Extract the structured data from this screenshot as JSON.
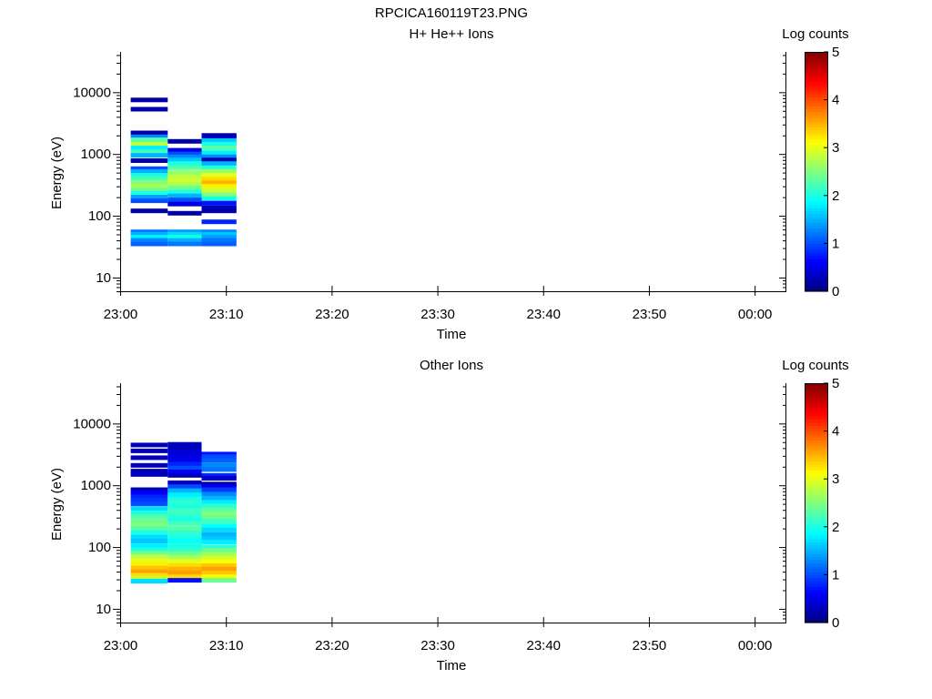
{
  "page_title": "RPCICA160119T23.PNG",
  "colorbar": {
    "stops": [
      "#00007f",
      "#0000ff",
      "#007fff",
      "#00ffff",
      "#7fff7f",
      "#ffff00",
      "#ff7f00",
      "#ff0000",
      "#7f0000"
    ]
  },
  "chart_data": [
    {
      "type": "heatmap",
      "title": "H+ He++ Ions",
      "xlabel": "Time",
      "ylabel": "Energy (eV)",
      "yscale": "log",
      "xlim": [
        "23:00",
        "00:03"
      ],
      "ylim": [
        6,
        45000
      ],
      "x_ticks": [
        "23:00",
        "23:10",
        "23:20",
        "23:30",
        "23:40",
        "23:50",
        "00:00"
      ],
      "y_ticks": [
        "10",
        "100",
        "1000",
        "10000"
      ],
      "colorbar_label": "Log counts",
      "colorbar_ticks": [
        "0",
        "1",
        "2",
        "3",
        "4",
        "5"
      ],
      "zlim": [
        0,
        5
      ],
      "x_bins": [
        [
          "23:01",
          "23:04.5"
        ],
        [
          "23:04.5",
          "23:07.7"
        ],
        [
          "23:07.7",
          "23:11"
        ]
      ],
      "cells": [
        [
          [
            7500,
            0.2
          ],
          [
            5300,
            0.2
          ],
          [
            2200,
            0.2
          ],
          [
            1900,
            1.3
          ],
          [
            1700,
            2.3
          ],
          [
            1450,
            2.8
          ],
          [
            1250,
            1.8
          ],
          [
            1080,
            2.2
          ],
          [
            950,
            1.5
          ],
          [
            780,
            0.2
          ],
          [
            580,
            1.0
          ],
          [
            520,
            1.5
          ],
          [
            450,
            2.0
          ],
          [
            400,
            2.2
          ],
          [
            350,
            2.5
          ],
          [
            300,
            2.7
          ],
          [
            260,
            2.4
          ],
          [
            230,
            2.0
          ],
          [
            200,
            1.4
          ],
          [
            175,
            1.0
          ],
          [
            120,
            0.2
          ],
          [
            55,
            1.2
          ],
          [
            50,
            1.5
          ],
          [
            45,
            1.8
          ],
          [
            40,
            1.3
          ],
          [
            35,
            1.1
          ]
        ],
        [
          [
            1600,
            0.2
          ],
          [
            1150,
            0.5
          ],
          [
            1000,
            1.0
          ],
          [
            900,
            1.3
          ],
          [
            800,
            1.6
          ],
          [
            700,
            2.0
          ],
          [
            600,
            2.3
          ],
          [
            500,
            2.6
          ],
          [
            430,
            2.8
          ],
          [
            370,
            2.9
          ],
          [
            320,
            2.7
          ],
          [
            280,
            2.4
          ],
          [
            240,
            2.0
          ],
          [
            210,
            1.5
          ],
          [
            180,
            1.0
          ],
          [
            155,
            0.5
          ],
          [
            110,
            0.2
          ],
          [
            55,
            1.4
          ],
          [
            50,
            1.7
          ],
          [
            45,
            2.0
          ],
          [
            40,
            1.5
          ],
          [
            35,
            1.2
          ]
        ],
        [
          [
            2000,
            0.2
          ],
          [
            1850,
            0.3
          ],
          [
            1650,
            1.6
          ],
          [
            1450,
            2.0
          ],
          [
            1250,
            2.3
          ],
          [
            1050,
            1.8
          ],
          [
            900,
            1.3
          ],
          [
            800,
            0.2
          ],
          [
            700,
            1.5
          ],
          [
            600,
            2.1
          ],
          [
            520,
            2.6
          ],
          [
            450,
            3.0
          ],
          [
            390,
            3.3
          ],
          [
            340,
            3.5
          ],
          [
            300,
            3.2
          ],
          [
            260,
            2.9
          ],
          [
            220,
            2.5
          ],
          [
            190,
            2.0
          ],
          [
            160,
            0.7
          ],
          [
            135,
            0.3
          ],
          [
            120,
            0.2
          ],
          [
            80,
            0.8
          ],
          [
            55,
            1.3
          ],
          [
            50,
            1.6
          ],
          [
            45,
            1.4
          ],
          [
            40,
            1.2
          ],
          [
            35,
            1.1
          ]
        ]
      ]
    },
    {
      "type": "heatmap",
      "title": "Other Ions",
      "xlabel": "Time",
      "ylabel": "Energy (eV)",
      "yscale": "log",
      "xlim": [
        "23:00",
        "00:03"
      ],
      "ylim": [
        6,
        45000
      ],
      "x_ticks": [
        "23:00",
        "23:10",
        "23:20",
        "23:30",
        "23:40",
        "23:50",
        "00:00"
      ],
      "y_ticks": [
        "10",
        "100",
        "1000",
        "10000"
      ],
      "colorbar_label": "Log counts",
      "colorbar_ticks": [
        "0",
        "1",
        "2",
        "3",
        "4",
        "5"
      ],
      "zlim": [
        0,
        5
      ],
      "x_bins": [
        [
          "23:01",
          "23:04.5"
        ],
        [
          "23:04.5",
          "23:07.7"
        ],
        [
          "23:07.7",
          "23:11"
        ]
      ],
      "cells": [
        [
          [
            4500,
            0.3
          ],
          [
            3600,
            0.3
          ],
          [
            2800,
            0.3
          ],
          [
            2100,
            0.3
          ],
          [
            1700,
            0.3
          ],
          [
            1500,
            0.3
          ],
          [
            850,
            0.3
          ],
          [
            750,
            0.6
          ],
          [
            650,
            0.8
          ],
          [
            570,
            0.9
          ],
          [
            500,
            1.0
          ],
          [
            420,
            1.7
          ],
          [
            360,
            2.0
          ],
          [
            310,
            2.3
          ],
          [
            270,
            2.4
          ],
          [
            230,
            2.5
          ],
          [
            200,
            2.3
          ],
          [
            170,
            2.0
          ],
          [
            145,
            1.7
          ],
          [
            125,
            1.6
          ],
          [
            105,
            1.8
          ],
          [
            90,
            2.0
          ],
          [
            80,
            2.4
          ],
          [
            70,
            2.8
          ],
          [
            60,
            3.0
          ],
          [
            52,
            3.2
          ],
          [
            46,
            3.4
          ],
          [
            40,
            3.6
          ],
          [
            35,
            3.3
          ],
          [
            31,
            2.8
          ],
          [
            28,
            1.7
          ]
        ],
        [
          [
            4600,
            0.3
          ],
          [
            4000,
            0.3
          ],
          [
            3500,
            0.4
          ],
          [
            3000,
            0.5
          ],
          [
            2600,
            0.5
          ],
          [
            2200,
            0.8
          ],
          [
            1900,
            1.0
          ],
          [
            1650,
            0.6
          ],
          [
            1450,
            0.3
          ],
          [
            1100,
            0.3
          ],
          [
            950,
            1.0
          ],
          [
            820,
            1.5
          ],
          [
            700,
            1.8
          ],
          [
            600,
            2.0
          ],
          [
            520,
            2.1
          ],
          [
            450,
            2.0
          ],
          [
            390,
            2.2
          ],
          [
            330,
            2.1
          ],
          [
            280,
            2.0
          ],
          [
            240,
            2.2
          ],
          [
            200,
            2.3
          ],
          [
            170,
            2.1
          ],
          [
            145,
            2.0
          ],
          [
            125,
            1.9
          ],
          [
            105,
            2.0
          ],
          [
            90,
            2.1
          ],
          [
            78,
            2.4
          ],
          [
            68,
            2.7
          ],
          [
            58,
            3.0
          ],
          [
            50,
            3.3
          ],
          [
            44,
            3.5
          ],
          [
            38,
            3.6
          ],
          [
            33,
            3.3
          ],
          [
            29,
            0.7
          ]
        ],
        [
          [
            3200,
            0.7
          ],
          [
            2900,
            1.0
          ],
          [
            2500,
            1.1
          ],
          [
            2100,
            1.3
          ],
          [
            1800,
            1.2
          ],
          [
            1450,
            0.8
          ],
          [
            1300,
            0.3
          ],
          [
            1050,
            0.3
          ],
          [
            950,
            0.5
          ],
          [
            850,
            0.9
          ],
          [
            720,
            1.3
          ],
          [
            620,
            1.5
          ],
          [
            530,
            1.8
          ],
          [
            460,
            2.1
          ],
          [
            400,
            2.3
          ],
          [
            350,
            2.5
          ],
          [
            300,
            2.4
          ],
          [
            260,
            2.2
          ],
          [
            220,
            1.9
          ],
          [
            190,
            1.7
          ],
          [
            160,
            1.5
          ],
          [
            140,
            1.6
          ],
          [
            120,
            1.8
          ],
          [
            100,
            2.1
          ],
          [
            88,
            2.4
          ],
          [
            76,
            2.7
          ],
          [
            66,
            2.9
          ],
          [
            58,
            3.1
          ],
          [
            50,
            3.4
          ],
          [
            44,
            3.6
          ],
          [
            38,
            3.4
          ],
          [
            33,
            3.1
          ],
          [
            29,
            2.4
          ]
        ]
      ]
    }
  ]
}
